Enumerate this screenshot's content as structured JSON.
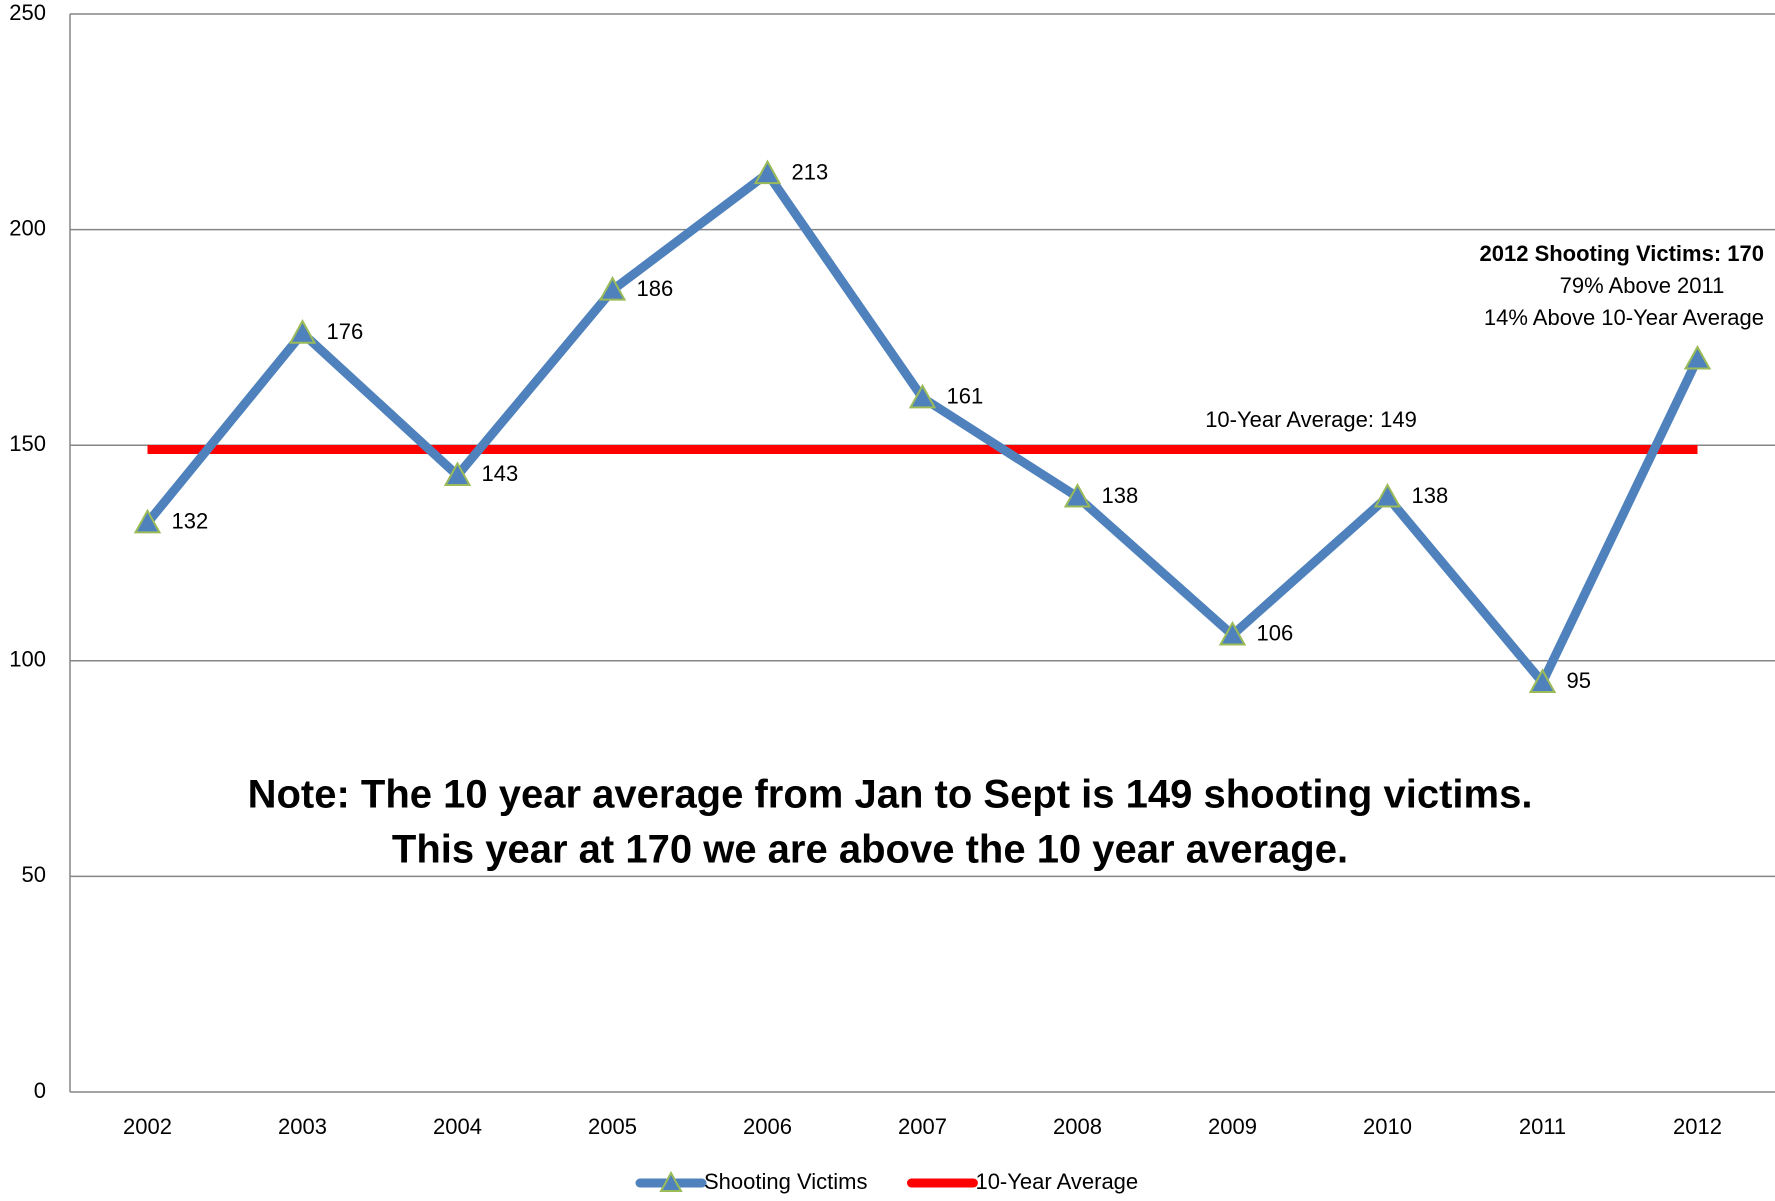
{
  "chart_data": {
    "type": "line",
    "categories": [
      "2002",
      "2003",
      "2004",
      "2005",
      "2006",
      "2007",
      "2008",
      "2009",
      "2010",
      "2011",
      "2012"
    ],
    "series": [
      {
        "name": "Shooting Victims",
        "color": "#4f81bd",
        "values": [
          132,
          176,
          143,
          186,
          213,
          161,
          138,
          106,
          138,
          95,
          170
        ],
        "marker": "triangle",
        "data_labels": true
      },
      {
        "name": "10-Year Average",
        "color": "#ff0000",
        "values": [
          149,
          149,
          149,
          149,
          149,
          149,
          149,
          149,
          149,
          149,
          149
        ]
      }
    ],
    "ylim": [
      0,
      250
    ],
    "yticks": [
      0,
      50,
      100,
      150,
      200,
      250
    ],
    "grid": true,
    "legend": "bottom",
    "annotations": {
      "average": "10-Year Average: 149",
      "highlight_title": "2012 Shooting Victims:  170",
      "highlight_line1": "79% Above 2011",
      "highlight_line2": "14% Above 10-Year Average",
      "note_line1": "Note:  The 10 year average  from Jan to Sept is 149 shooting victims.",
      "note_line2": "This year at 170 we are above the 10 year average."
    }
  }
}
